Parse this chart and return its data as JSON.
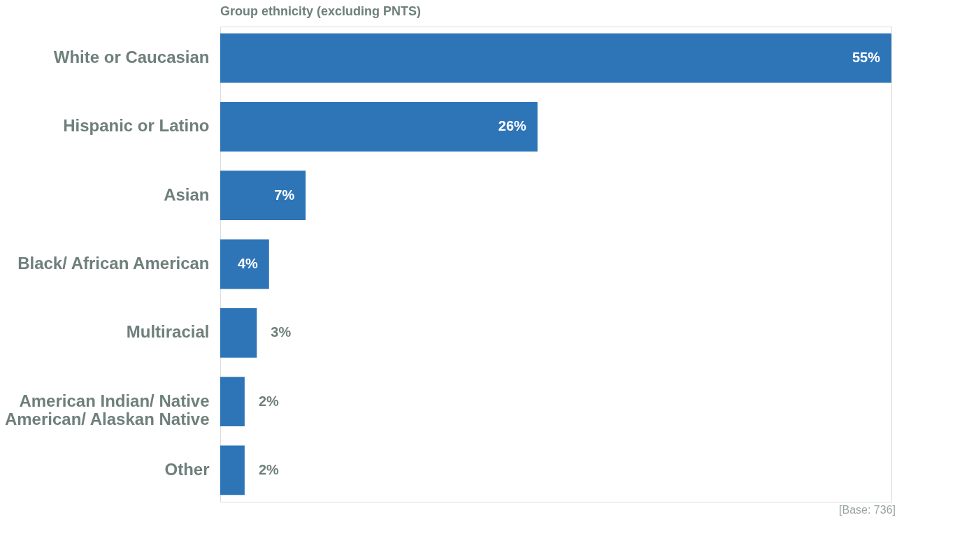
{
  "chart_data": {
    "type": "bar",
    "orientation": "horizontal",
    "title": "Group ethnicity (excluding PNTS)",
    "categories": [
      "White or Caucasian",
      "Hispanic or Latino",
      "Asian",
      "Black/ African American",
      "Multiracial",
      "American Indian/ Native American/ Alaskan Native",
      "Other"
    ],
    "values": [
      55,
      26,
      7,
      4,
      3,
      2,
      2
    ],
    "color": "#2e75b8",
    "data_labels": true,
    "value_labels": [
      "55%",
      "26%",
      "7%",
      "4%",
      "3%",
      "2%",
      "2%"
    ],
    "annotations": [
      "[Base: 736]"
    ]
  }
}
